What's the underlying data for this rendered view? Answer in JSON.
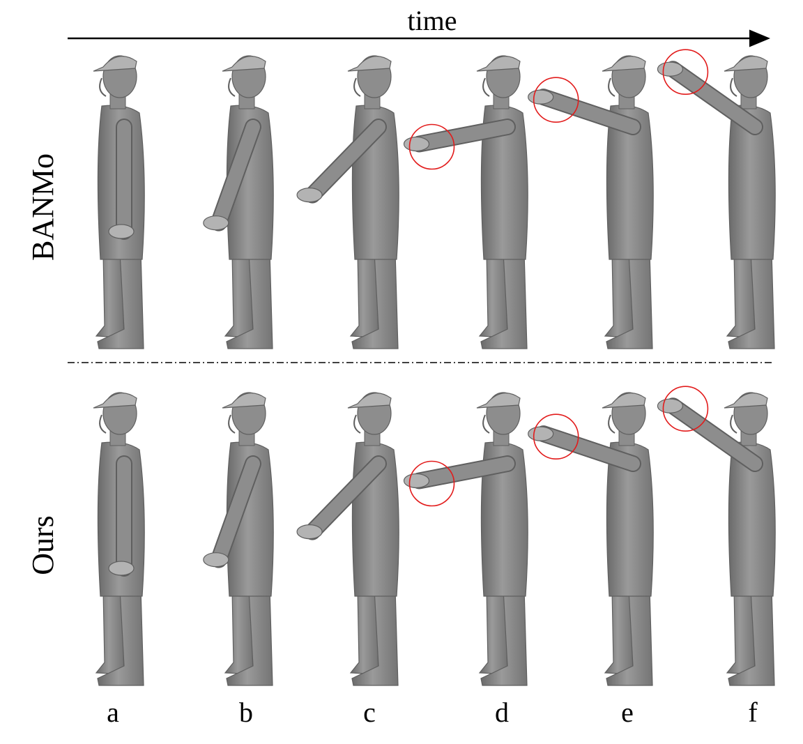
{
  "figure": {
    "time_label": "time",
    "row_labels": [
      "BANMo",
      "Ours"
    ],
    "column_labels": [
      "a",
      "b",
      "c",
      "d",
      "e",
      "f"
    ],
    "colors": {
      "mesh_fill": "#8d8d8d",
      "mesh_dark": "#5f5f5f",
      "mesh_light": "#b3b3b3",
      "highlight_circle": "#e21b1b",
      "axis": "#000000"
    },
    "arm_raise_per_frame": [
      0.0,
      0.18,
      0.38,
      0.62,
      0.82,
      0.95
    ],
    "highlighted_frames": {
      "BANMo": [
        "d",
        "e",
        "f"
      ],
      "Ours": [
        "d",
        "e",
        "f"
      ]
    }
  }
}
